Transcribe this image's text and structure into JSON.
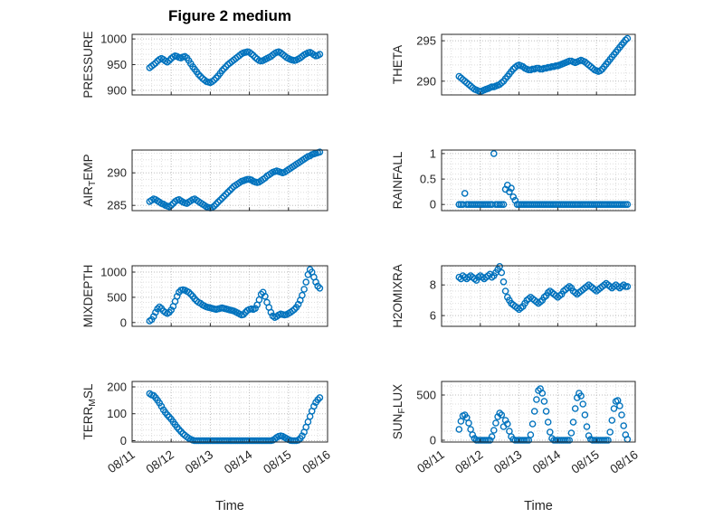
{
  "title": "Figure 2 medium",
  "xlabel": "Time",
  "x_tick_labels": [
    "08/11",
    "08/12",
    "08/13",
    "08/14",
    "08/15",
    "08/16"
  ],
  "marker_color": "#0072BD",
  "chart_data": {
    "type": "scatter",
    "x": {
      "start": 0.45,
      "step": 0.05,
      "count": 88,
      "unit": "days from 08/11"
    },
    "xlim": [
      0,
      5
    ],
    "subplots": [
      {
        "name": "pressure",
        "ylabel": {
          "pre": "PRESSURE",
          "sub": "",
          "post": ""
        },
        "yticks": [
          900,
          950,
          1000
        ],
        "ylim": [
          891,
          1009
        ],
        "y": [
          944,
          947,
          950,
          953,
          957,
          960,
          962,
          960,
          957,
          955,
          958,
          962,
          965,
          967,
          966,
          964,
          963,
          965,
          966,
          963,
          958,
          952,
          946,
          941,
          936,
          931,
          927,
          923,
          920,
          917,
          916,
          915,
          917,
          920,
          924,
          928,
          933,
          938,
          942,
          946,
          950,
          953,
          956,
          959,
          962,
          965,
          968,
          971,
          973,
          974,
          975,
          974,
          971,
          968,
          964,
          961,
          958,
          957,
          958,
          960,
          962,
          964,
          966,
          969,
          972,
          974,
          975,
          973,
          970,
          967,
          964,
          962,
          960,
          959,
          958,
          959,
          961,
          963,
          966,
          969,
          971,
          973,
          974,
          972,
          969,
          967,
          968,
          970
        ]
      },
      {
        "name": "theta",
        "ylabel": {
          "pre": "THETA",
          "sub": "",
          "post": ""
        },
        "yticks": [
          290,
          295
        ],
        "ylim": [
          288.3,
          295.8
        ],
        "y": [
          290.6,
          290.4,
          290.2,
          290,
          289.8,
          289.6,
          289.4,
          289.2,
          289,
          288.9,
          288.8,
          288.7,
          288.8,
          288.9,
          289,
          289.1,
          289.2,
          289.3,
          289.3,
          289.4,
          289.5,
          289.6,
          289.8,
          290,
          290.3,
          290.6,
          290.9,
          291.2,
          291.5,
          291.7,
          291.9,
          292,
          291.9,
          291.8,
          291.6,
          291.5,
          291.4,
          291.4,
          291.5,
          291.5,
          291.6,
          291.6,
          291.5,
          291.5,
          291.6,
          291.6,
          291.7,
          291.7,
          291.8,
          291.8,
          291.9,
          291.9,
          292,
          292.1,
          292.2,
          292.3,
          292.4,
          292.5,
          292.5,
          292.4,
          292.3,
          292.4,
          292.5,
          292.6,
          292.5,
          292.4,
          292.2,
          292,
          291.8,
          291.6,
          291.4,
          291.3,
          291.2,
          291.3,
          291.5,
          291.8,
          292.1,
          292.4,
          292.7,
          293,
          293.3,
          293.6,
          293.9,
          294.2,
          294.5,
          294.8,
          295.1,
          295.3
        ]
      },
      {
        "name": "air-temp",
        "ylabel": {
          "pre": "AIR",
          "sub": "T",
          "post": "EMP"
        },
        "yticks": [
          285,
          290
        ],
        "ylim": [
          284.2,
          293.5
        ],
        "y": [
          285.6,
          285.8,
          286,
          285.9,
          285.7,
          285.5,
          285.3,
          285.2,
          285,
          284.9,
          284.8,
          285,
          285.3,
          285.6,
          285.8,
          285.9,
          285.7,
          285.5,
          285.4,
          285.3,
          285.5,
          285.7,
          285.9,
          286,
          285.8,
          285.6,
          285.4,
          285.2,
          285,
          284.8,
          284.7,
          284.6,
          284.7,
          284.9,
          285.2,
          285.5,
          285.8,
          286.1,
          286.4,
          286.7,
          287,
          287.3,
          287.6,
          287.9,
          288.1,
          288.3,
          288.5,
          288.7,
          288.8,
          288.9,
          289,
          289,
          288.9,
          288.7,
          288.6,
          288.5,
          288.6,
          288.8,
          289,
          289.2,
          289.5,
          289.7,
          289.9,
          290.1,
          290.2,
          290.3,
          290.2,
          290.1,
          290,
          290.1,
          290.3,
          290.5,
          290.7,
          290.9,
          291.1,
          291.3,
          291.5,
          291.7,
          291.9,
          292.1,
          292.3,
          292.5,
          292.6,
          292.8,
          292.9,
          293,
          293.1,
          293.2
        ]
      },
      {
        "name": "rainfall",
        "ylabel": {
          "pre": "RAINFALL",
          "sub": "",
          "post": ""
        },
        "yticks": [
          0,
          0.5,
          1
        ],
        "ylim": [
          -0.12,
          1.07
        ],
        "y": [
          0,
          0,
          0,
          0.22,
          0,
          0,
          0,
          0,
          0,
          0,
          0,
          0,
          0,
          0,
          0,
          0,
          0,
          0,
          1,
          0,
          0,
          0,
          0,
          0,
          0.3,
          0.38,
          0.25,
          0.32,
          0.15,
          0.08,
          0,
          0,
          0,
          0,
          0,
          0,
          0,
          0,
          0,
          0,
          0,
          0,
          0,
          0,
          0,
          0,
          0,
          0,
          0,
          0,
          0,
          0,
          0,
          0,
          0,
          0,
          0,
          0,
          0,
          0,
          0,
          0,
          0,
          0,
          0,
          0,
          0,
          0,
          0,
          0,
          0,
          0,
          0,
          0,
          0,
          0,
          0,
          0,
          0,
          0,
          0,
          0,
          0,
          0,
          0,
          0,
          0,
          0
        ]
      },
      {
        "name": "mixdepth",
        "ylabel": {
          "pre": "MIXDEPTH",
          "sub": "",
          "post": ""
        },
        "yticks": [
          0,
          500,
          1000
        ],
        "ylim": [
          -75,
          1125
        ],
        "y": [
          30,
          60,
          120,
          200,
          270,
          310,
          280,
          230,
          200,
          180,
          200,
          250,
          320,
          420,
          520,
          600,
          640,
          650,
          640,
          620,
          600,
          560,
          520,
          470,
          430,
          400,
          380,
          350,
          330,
          310,
          300,
          290,
          280,
          270,
          260,
          270,
          280,
          290,
          280,
          270,
          260,
          250,
          240,
          230,
          210,
          190,
          170,
          150,
          160,
          200,
          240,
          260,
          270,
          260,
          280,
          350,
          450,
          560,
          600,
          520,
          400,
          300,
          200,
          130,
          100,
          120,
          150,
          170,
          160,
          150,
          160,
          180,
          200,
          230,
          260,
          300,
          360,
          440,
          540,
          660,
          800,
          950,
          1050,
          1000,
          900,
          800,
          720,
          680
        ]
      },
      {
        "name": "h2omixra",
        "ylabel": {
          "pre": "H2OMIXRA",
          "sub": "",
          "post": ""
        },
        "yticks": [
          6,
          8
        ],
        "ylim": [
          5.3,
          9.25
        ],
        "y": [
          8.5,
          8.4,
          8.6,
          8.5,
          8.4,
          8.5,
          8.6,
          8.5,
          8.4,
          8.3,
          8.5,
          8.6,
          8.5,
          8.4,
          8.5,
          8.6,
          8.7,
          8.5,
          8.6,
          8.8,
          9,
          9.2,
          8.8,
          8.2,
          7.6,
          7.2,
          7,
          6.8,
          6.7,
          6.6,
          6.5,
          6.4,
          6.5,
          6.6,
          6.8,
          7,
          7.1,
          7.2,
          7.1,
          7,
          6.9,
          6.8,
          6.9,
          7,
          7.2,
          7.3,
          7.5,
          7.6,
          7.5,
          7.4,
          7.3,
          7.2,
          7.3,
          7.4,
          7.6,
          7.7,
          7.8,
          7.9,
          7.8,
          7.6,
          7.5,
          7.4,
          7.5,
          7.6,
          7.7,
          7.8,
          7.9,
          8,
          7.9,
          7.8,
          7.7,
          7.6,
          7.7,
          7.8,
          7.9,
          8,
          8.1,
          8,
          7.9,
          7.8,
          7.9,
          8,
          7.9,
          7.8,
          7.9,
          8,
          7.9,
          7.9
        ]
      },
      {
        "name": "terr-msl",
        "ylabel": {
          "pre": "TERR",
          "sub": "M",
          "post": "SL"
        },
        "yticks": [
          0,
          100,
          200
        ],
        "ylim": [
          -5,
          220
        ],
        "y": [
          175,
          170,
          168,
          160,
          150,
          140,
          128,
          115,
          105,
          96,
          88,
          80,
          70,
          60,
          50,
          42,
          34,
          26,
          20,
          14,
          9,
          5,
          2,
          0,
          0,
          0,
          0,
          0,
          0,
          0,
          0,
          0,
          0,
          0,
          0,
          0,
          0,
          0,
          0,
          0,
          0,
          0,
          0,
          0,
          0,
          0,
          0,
          0,
          0,
          0,
          0,
          0,
          0,
          0,
          0,
          0,
          0,
          0,
          0,
          0,
          0,
          0,
          0,
          2,
          6,
          12,
          16,
          18,
          16,
          12,
          8,
          4,
          1,
          0,
          0,
          0,
          2,
          8,
          18,
          32,
          50,
          70,
          90,
          110,
          128,
          142,
          152,
          160
        ]
      },
      {
        "name": "sun-flux",
        "ylabel": {
          "pre": "SUN",
          "sub": "F",
          "post": "LUX"
        },
        "yticks": [
          0,
          500
        ],
        "ylim": [
          -20,
          650
        ],
        "y": [
          120,
          210,
          270,
          280,
          250,
          190,
          120,
          60,
          20,
          0,
          0,
          0,
          0,
          0,
          0,
          0,
          0,
          40,
          110,
          190,
          260,
          300,
          280,
          150,
          220,
          180,
          100,
          40,
          10,
          0,
          0,
          0,
          0,
          0,
          0,
          0,
          0,
          60,
          180,
          320,
          450,
          550,
          570,
          520,
          430,
          320,
          200,
          90,
          20,
          0,
          0,
          0,
          0,
          0,
          0,
          0,
          0,
          0,
          80,
          200,
          350,
          470,
          520,
          490,
          400,
          280,
          150,
          50,
          10,
          0,
          0,
          0,
          0,
          0,
          0,
          0,
          0,
          0,
          90,
          220,
          350,
          430,
          440,
          380,
          280,
          160,
          60,
          10
        ]
      }
    ]
  }
}
